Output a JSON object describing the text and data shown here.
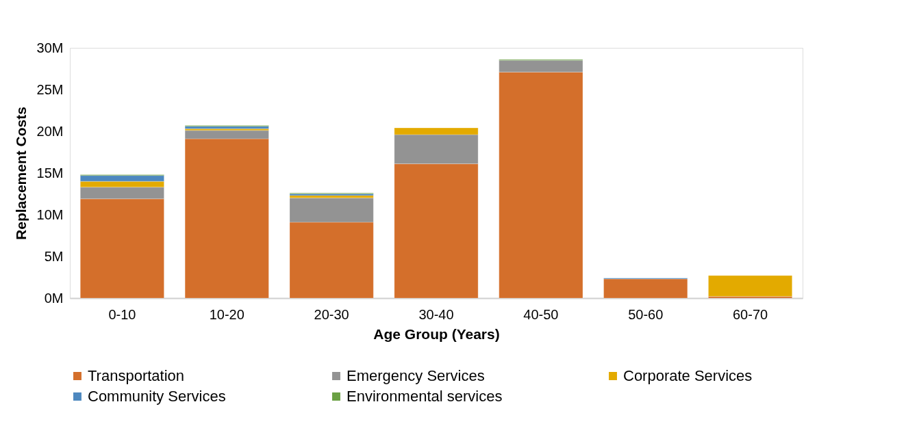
{
  "chart_data": {
    "type": "bar",
    "stacked": true,
    "xlabel": "Age Group (Years)",
    "ylabel": "Replacement Costs",
    "categories": [
      "0-10",
      "10-20",
      "20-30",
      "30-40",
      "40-50",
      "50-60",
      "60-70"
    ],
    "series": [
      {
        "name": "Transportation",
        "color": "#d46f2b",
        "values": [
          11.9,
          19.1,
          9.1,
          16.1,
          27.1,
          2.3,
          0.2
        ]
      },
      {
        "name": "Emergency Services",
        "color": "#939393",
        "values": [
          1.4,
          1.0,
          2.9,
          3.5,
          1.4,
          null,
          null
        ]
      },
      {
        "name": "Corporate Services",
        "color": "#e3aa00",
        "values": [
          0.7,
          0.2,
          0.3,
          0.8,
          null,
          null,
          2.5
        ]
      },
      {
        "name": "Community Services",
        "color": "#4d88bf",
        "values": [
          0.7,
          0.3,
          0.2,
          null,
          null,
          0.1,
          null
        ]
      },
      {
        "name": "Environmental services",
        "color": "#6aa043",
        "values": [
          0.1,
          0.1,
          0.1,
          null,
          0.1,
          null,
          null
        ]
      }
    ],
    "ylim": [
      0,
      30
    ],
    "yticks": [
      {
        "value": 0,
        "label": "0M"
      },
      {
        "value": 5,
        "label": "5M"
      },
      {
        "value": 10,
        "label": "10M"
      },
      {
        "value": 15,
        "label": "15M"
      },
      {
        "value": 20,
        "label": "20M"
      },
      {
        "value": 25,
        "label": "25M"
      },
      {
        "value": 30,
        "label": "30M"
      }
    ],
    "grid": false,
    "legend": "bottom"
  }
}
